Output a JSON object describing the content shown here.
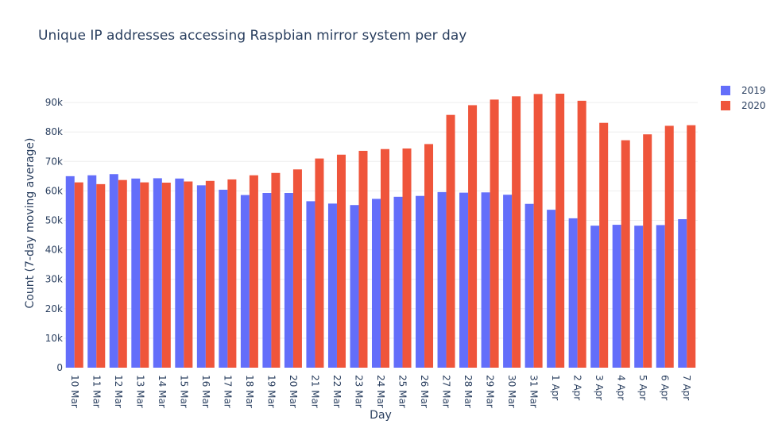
{
  "chart_data": {
    "type": "bar",
    "title": "Unique IP addresses accessing Raspbian mirror system per day",
    "xlabel": "Day",
    "ylabel": "Count (7-day moving average)",
    "ylim": [
      0,
      100000
    ],
    "yticks": [
      0,
      10000,
      20000,
      30000,
      40000,
      50000,
      60000,
      70000,
      80000,
      90000
    ],
    "ytick_labels": [
      "0",
      "10k",
      "20k",
      "30k",
      "40k",
      "50k",
      "60k",
      "70k",
      "80k",
      "90k"
    ],
    "grid": true,
    "legend_position": "top-right",
    "categories": [
      "10 Mar",
      "11 Mar",
      "12 Mar",
      "13 Mar",
      "14 Mar",
      "15 Mar",
      "16 Mar",
      "17 Mar",
      "18 Mar",
      "19 Mar",
      "20 Mar",
      "21 Mar",
      "22 Mar",
      "23 Mar",
      "24 Mar",
      "25 Mar",
      "26 Mar",
      "27 Mar",
      "28 Mar",
      "29 Mar",
      "30 Mar",
      "31 Mar",
      "1 Apr",
      "2 Apr",
      "3 Apr",
      "4 Apr",
      "5 Apr",
      "6 Apr",
      "7 Apr"
    ],
    "series": [
      {
        "name": "2019",
        "color": "#636efa",
        "values": [
          65000,
          65300,
          65700,
          64200,
          64300,
          64200,
          61900,
          60400,
          58600,
          59300,
          59300,
          56500,
          55700,
          55200,
          57300,
          58000,
          58300,
          59600,
          59400,
          59500,
          58700,
          55600,
          53600,
          50700,
          48200,
          48500,
          48200,
          48400,
          50400
        ]
      },
      {
        "name": "2020",
        "color": "#ef553b",
        "values": [
          62900,
          62300,
          63700,
          62900,
          62800,
          63200,
          63400,
          63900,
          65300,
          66100,
          67300,
          71000,
          72300,
          73600,
          74200,
          74400,
          75900,
          85800,
          89100,
          91000,
          92100,
          92900,
          93000,
          90600,
          83100,
          77200,
          79200,
          82100,
          82300
        ]
      }
    ]
  }
}
